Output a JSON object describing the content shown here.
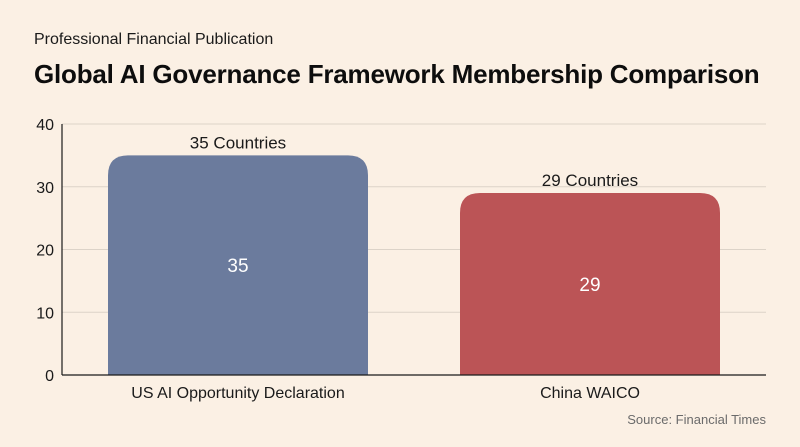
{
  "header": {
    "subtitle": "Professional Financial Publication",
    "title": "Global AI Governance Framework Membership Comparison"
  },
  "footer": {
    "source": "Source: Financial Times"
  },
  "chart_data": {
    "type": "bar",
    "title": "Global AI Governance Framework Membership Comparison",
    "xlabel": "",
    "ylabel": "",
    "categories": [
      "US AI Opportunity Declaration",
      "China WAICO"
    ],
    "values": [
      35,
      29
    ],
    "top_labels": [
      "35 Countries",
      "29 Countries"
    ],
    "inner_labels": [
      "35",
      "29"
    ],
    "colors": [
      "#6B7B9D",
      "#BB5456"
    ],
    "ylim": [
      0,
      40
    ],
    "yticks": [
      0,
      10,
      20,
      30,
      40
    ],
    "grid": true,
    "legend": "none"
  }
}
